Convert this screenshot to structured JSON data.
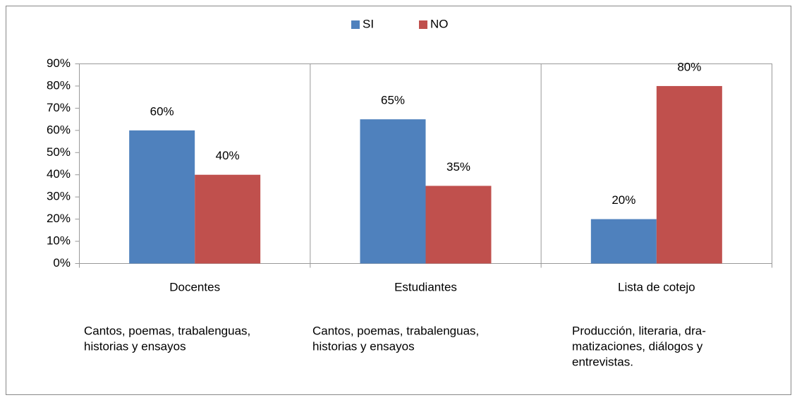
{
  "chart_data": {
    "type": "bar",
    "categories": [
      "Docentes",
      "Estudiantes",
      "Lista de cotejo"
    ],
    "series": [
      {
        "name": "SI",
        "color": "#4f81bd",
        "values": [
          60,
          65,
          20
        ],
        "value_labels": [
          "60%",
          "65%",
          "20%"
        ]
      },
      {
        "name": "NO",
        "color": "#c0504d",
        "values": [
          40,
          35,
          80
        ],
        "value_labels": [
          "40%",
          "35%",
          "80%"
        ]
      }
    ],
    "ylim": [
      0,
      90
    ],
    "yticks": [
      {
        "value": 0,
        "label": "0%"
      },
      {
        "value": 10,
        "label": "10%"
      },
      {
        "value": 20,
        "label": "20%"
      },
      {
        "value": 30,
        "label": "30%"
      },
      {
        "value": 40,
        "label": "40%"
      },
      {
        "value": 50,
        "label": "50%"
      },
      {
        "value": 60,
        "label": "60%"
      },
      {
        "value": 70,
        "label": "70%"
      },
      {
        "value": 80,
        "label": "80%"
      },
      {
        "value": 90,
        "label": "90%"
      }
    ],
    "legend": "top",
    "annotations": [
      [
        "Cantos, poemas, trabalenguas,",
        "historias y ensayos"
      ],
      [
        "Cantos, poemas, trabalenguas,",
        "historias y ensayos"
      ],
      [
        "Producción, literaria, dra-",
        "matizaciones, diálogos y",
        "entrevistas."
      ]
    ]
  }
}
